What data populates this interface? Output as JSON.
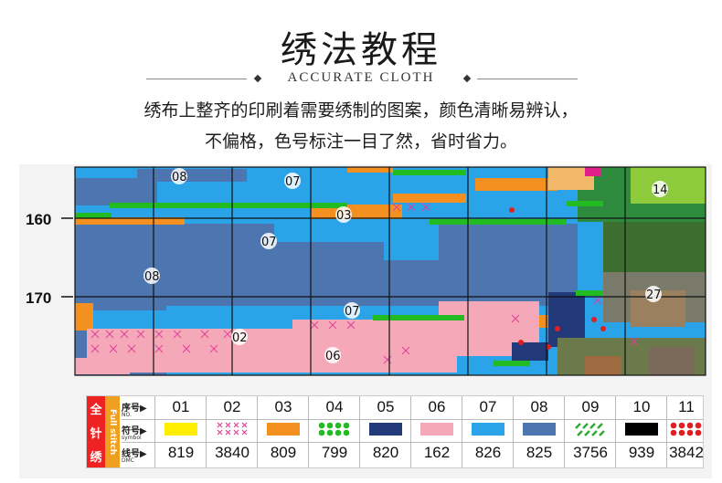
{
  "header": {
    "title": "绣法教程",
    "subtitle": "ACCURATE CLOTH",
    "desc_line1": "绣布上整齐的印刷着需要绣制的图案，颜色清晰易辨认，",
    "desc_line2": "不偏格，色号标注一目了然，省时省力。"
  },
  "chart": {
    "row_labels": [
      "160",
      "170"
    ],
    "region_numbers": [
      "08",
      "07",
      "03",
      "07",
      "08",
      "07",
      "02",
      "06",
      "14",
      "27"
    ]
  },
  "legend": {
    "category_cn": [
      "全",
      "针",
      "绣"
    ],
    "category_en": "Full stitch",
    "row_headers": [
      {
        "cn": "序号",
        "en": "NO."
      },
      {
        "cn": "符号",
        "en": "symbol"
      },
      {
        "cn": "线号",
        "en": "DMC"
      }
    ],
    "entries": [
      {
        "no": "01",
        "dmc": "819",
        "symbol": "yellow-fill",
        "color": "#ffee00"
      },
      {
        "no": "02",
        "dmc": "3840",
        "symbol": "pink-cross",
        "color": "#e0409a"
      },
      {
        "no": "03",
        "dmc": "809",
        "symbol": "orange-fill",
        "color": "#f49020"
      },
      {
        "no": "04",
        "dmc": "799",
        "symbol": "green-dots",
        "color": "#22bb22"
      },
      {
        "no": "05",
        "dmc": "820",
        "symbol": "navy-fill",
        "color": "#233a7a"
      },
      {
        "no": "06",
        "dmc": "162",
        "symbol": "pink-fill",
        "color": "#f5a9b8"
      },
      {
        "no": "07",
        "dmc": "826",
        "symbol": "blue-fill",
        "color": "#2aa3e8"
      },
      {
        "no": "08",
        "dmc": "825",
        "symbol": "steel-fill",
        "color": "#4d76b0"
      },
      {
        "no": "09",
        "dmc": "3756",
        "symbol": "green-slash",
        "color": "#33aa33"
      },
      {
        "no": "10",
        "dmc": "939",
        "symbol": "black-fill",
        "color": "#000000"
      },
      {
        "no": "11",
        "dmc": "3842",
        "symbol": "red-dots",
        "color": "#e02020"
      }
    ]
  }
}
